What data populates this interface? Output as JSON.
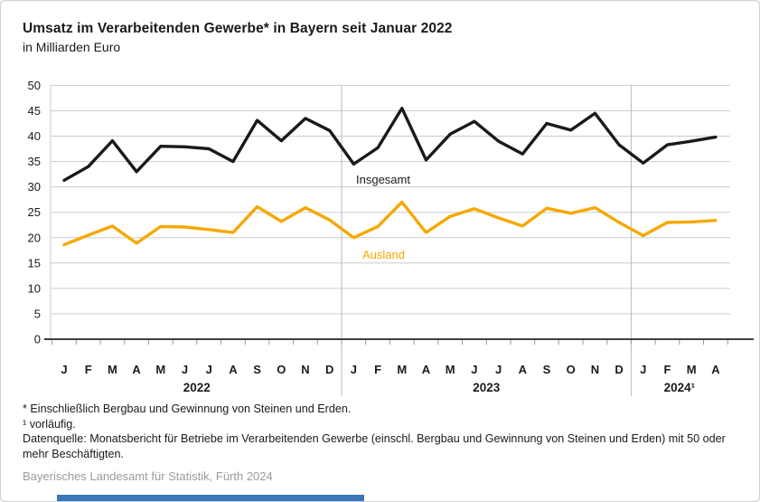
{
  "header": {
    "title": "Umsatz im Verarbeitenden Gewerbe* in Bayern seit Januar 2022",
    "subtitle": "in Milliarden Euro"
  },
  "chart_data": {
    "type": "line",
    "title": "Umsatz im Verarbeitenden Gewerbe in Bayern seit Januar 2022",
    "ylabel": "Milliarden Euro",
    "x_months": [
      "J",
      "F",
      "M",
      "A",
      "M",
      "J",
      "J",
      "A",
      "S",
      "O",
      "N",
      "D",
      "J",
      "F",
      "M",
      "A",
      "M",
      "J",
      "J",
      "A",
      "S",
      "O",
      "N",
      "D",
      "J",
      "F",
      "M",
      "A"
    ],
    "year_groups": [
      {
        "label": "2022",
        "months": 12
      },
      {
        "label": "2023",
        "months": 12
      },
      {
        "label": "2024¹",
        "months": 4
      }
    ],
    "series": [
      {
        "name": "Insgesamt",
        "color": "#1a1a1a",
        "values": [
          31.3,
          34.0,
          39.1,
          33.0,
          38.0,
          37.9,
          37.5,
          35.0,
          43.1,
          39.1,
          43.5,
          41.1,
          34.5,
          37.7,
          45.5,
          35.3,
          40.4,
          42.9,
          39.0,
          36.5,
          42.5,
          41.2,
          44.5,
          38.3,
          34.7,
          38.3,
          39.0,
          39.8
        ]
      },
      {
        "name": "Ausland",
        "color": "#f6a800",
        "values": [
          18.6,
          20.5,
          22.3,
          18.9,
          22.2,
          22.1,
          21.6,
          21.0,
          26.1,
          23.2,
          25.9,
          23.5,
          20.0,
          22.2,
          27.0,
          21.0,
          24.2,
          25.7,
          23.9,
          22.3,
          25.8,
          24.8,
          25.9,
          23.0,
          20.4,
          23.0,
          23.1,
          23.4
        ]
      }
    ],
    "ylim": [
      0,
      50
    ],
    "ytick_step": 5,
    "grid": true,
    "legend_position": "inline-labels"
  },
  "footnotes": [
    "* Einschließlich Bergbau und Gewinnung von Steinen und Erden.",
    "¹ vorläufig.",
    "Datenquelle: Monatsbericht für Betriebe im Verarbeitenden Gewerbe (einschl. Bergbau und Gewinnung von Steinen und Erden) mit 50 oder mehr Beschäftigten."
  ],
  "attribution": "Bayerisches Landesamt für Statistik, Fürth 2024",
  "colors": {
    "insgesamt": "#1a1a1a",
    "ausland": "#f6a800",
    "grid": "#cccccc",
    "year_separator": "#bbbbbb",
    "axis": "#404040",
    "attribution_text": "#9b9b9b",
    "bottom_bar": "#3a77b8"
  }
}
